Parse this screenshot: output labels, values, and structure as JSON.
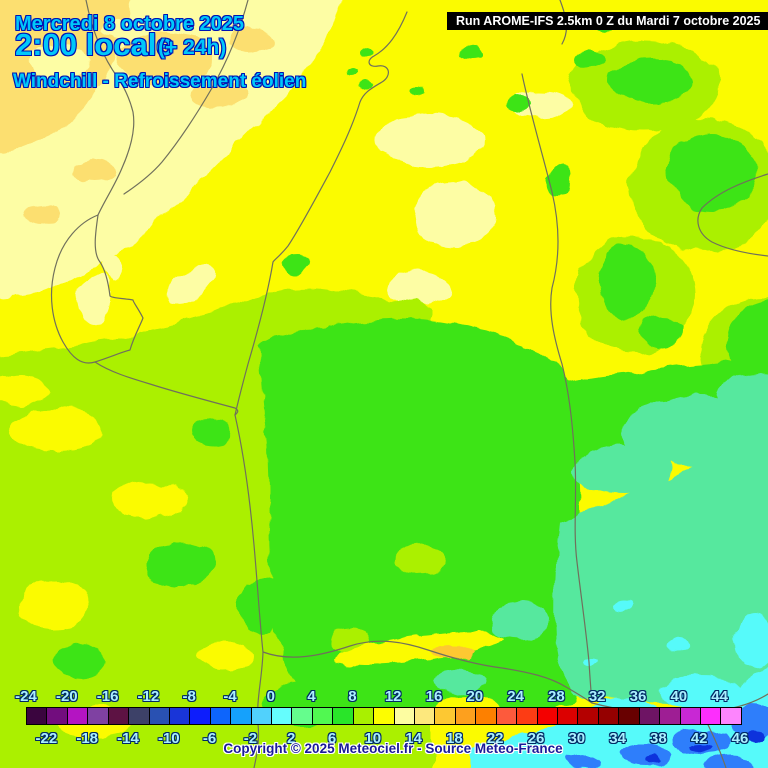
{
  "header": {
    "date_line": "Mercredi 8 octobre 2025",
    "time_line": "2:00 locale",
    "offset_label": "(+ 24h)",
    "product_label": "Windchill - Refroissement éolien"
  },
  "run_banner": {
    "text": "Run AROME-IFS 2.5km 0 Z du Mardi 7 octobre 2025"
  },
  "legend": {
    "min": -24,
    "max": 46,
    "step": 2,
    "top_labels": [
      "-24",
      "-20",
      "-16",
      "-12",
      "-8",
      "-4",
      "0",
      "4",
      "8",
      "12",
      "16",
      "20",
      "24",
      "28",
      "32",
      "36",
      "40",
      "44"
    ],
    "bottom_labels": [
      "-22",
      "-18",
      "-14",
      "-10",
      "-6",
      "-2",
      "2",
      "6",
      "10",
      "14",
      "18",
      "22",
      "26",
      "30",
      "34",
      "38",
      "42",
      "46"
    ],
    "cell_colors": [
      "#3a053e",
      "#720d7e",
      "#b414c2",
      "#7f41a2",
      "#5d1243",
      "#3d4168",
      "#2951b2",
      "#1935d8",
      "#0d1dfc",
      "#0d65fc",
      "#15a1fc",
      "#51d1fc",
      "#65fdfd",
      "#65fd8d",
      "#51f851",
      "#29e529",
      "#a9f000",
      "#fdfd00",
      "#fdfda1",
      "#fde87d",
      "#fdc832",
      "#fda01e",
      "#fd8000",
      "#fd5a3c",
      "#fd3c14",
      "#f40000",
      "#dc0000",
      "#b40000",
      "#950000",
      "#680000",
      "#6e1464",
      "#9e1e94",
      "#c828d4",
      "#fd2efd",
      "#fd85fd"
    ]
  },
  "copyright": "Copyright © 2025 Meteociel.fr - Source Meteo-France",
  "map_colors": {
    "base_yellow": "#fbfb00",
    "pale_yellow": "#fdfda4",
    "tan": "#fcdf70",
    "chartreuse": "#abf000",
    "green": "#3ee414",
    "mint": "#57e89e",
    "cyan": "#57fafa",
    "blue": "#2e7efb",
    "deep_blue": "#0a32dc",
    "gold": "#fdc832",
    "border_line": "#70705c"
  },
  "css_vars": {
    "header-cyan": "#00c8fa",
    "header-outline": "#0014b4",
    "legend-label": "#aaf0ff",
    "legend-outline": "#002a64",
    "copyright-color": "#1a1a9a",
    "banner-bg": "#000000",
    "banner-text": "#ffffff"
  }
}
